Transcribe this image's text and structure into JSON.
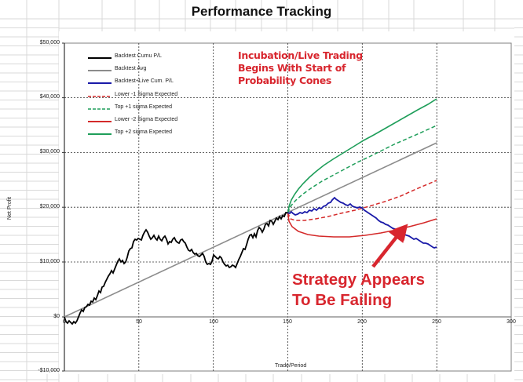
{
  "chart_data": {
    "type": "line",
    "title": "Performance Tracking",
    "xlabel": "Trade/Period",
    "ylabel": "Net Profit",
    "xlim": [
      0,
      300
    ],
    "ylim": [
      -10000,
      50000
    ],
    "x_ticks": [
      "0",
      "50",
      "100",
      "150",
      "200",
      "250",
      "300"
    ],
    "y_ticks": [
      "$50,000",
      "$40,000",
      "$30,000",
      "$20,000",
      "$10,000",
      "$0",
      "-$10,000"
    ],
    "grid": true,
    "legend_position": "upper-left",
    "legend": [
      {
        "label": "Backtest Cumu P/L",
        "color": "#000000",
        "style": "solid"
      },
      {
        "label": "Backtest Avg",
        "color": "#8c8c8c",
        "style": "solid"
      },
      {
        "label": "Backtest+Live Cum. P/L",
        "color": "#1a1aa8",
        "style": "solid"
      },
      {
        "label": "Lower -1 Sigma Expected",
        "color": "#d42a2a",
        "style": "dashed"
      },
      {
        "label": "Top +1 sigma Expected",
        "color": "#1f9e5a",
        "style": "dashed"
      },
      {
        "label": "Lower -2 Sigma Expected",
        "color": "#d42a2a",
        "style": "solid"
      },
      {
        "label": "Top +2 sigma Expected",
        "color": "#1f9e5a",
        "style": "solid"
      }
    ],
    "series": [
      {
        "name": "Backtest Cumu P/L",
        "x": [
          0,
          3,
          6,
          10,
          14,
          18,
          22,
          26,
          30,
          34,
          38,
          42,
          46,
          50,
          54,
          58,
          62,
          66,
          70,
          74,
          78,
          82,
          86,
          90,
          94,
          98,
          102,
          106,
          110,
          114,
          118,
          122,
          126,
          130,
          134,
          138,
          142,
          146,
          150
        ],
        "y": [
          0,
          -1200,
          -900,
          300,
          2800,
          4200,
          5500,
          6800,
          8500,
          9900,
          10800,
          10500,
          12800,
          14000,
          14200,
          15400,
          14600,
          13500,
          13200,
          14000,
          12900,
          12300,
          13000,
          12000,
          10200,
          9800,
          10800,
          10300,
          9200,
          8600,
          9000,
          12000,
          13200,
          15500,
          16000,
          17200,
          17500,
          18200,
          19000
        ]
      },
      {
        "name": "Backtest Avg",
        "x": [
          0,
          250
        ],
        "y": [
          0,
          31800
        ]
      },
      {
        "name": "Backtest+Live Cum. P/L",
        "x": [
          150,
          155,
          160,
          165,
          170,
          175,
          180,
          185,
          190,
          195,
          200,
          205,
          210,
          215,
          220,
          225,
          230,
          235,
          240,
          245,
          250
        ],
        "y": [
          19000,
          18600,
          19200,
          19400,
          19900,
          20500,
          21600,
          20800,
          20400,
          20300,
          20000,
          19400,
          18800,
          18200,
          17700,
          17100,
          16400,
          15800,
          15100,
          14800,
          14500
        ]
      },
      {
        "name": "Lower -1 Sigma Expected",
        "x": [
          150,
          160,
          175,
          200,
          225,
          250
        ],
        "y": [
          19000,
          17100,
          17700,
          19900,
          22300,
          24900
        ]
      },
      {
        "name": "Top +1 sigma Expected",
        "x": [
          150,
          160,
          175,
          200,
          225,
          250
        ],
        "y": [
          19000,
          22600,
          26000,
          30200,
          34600,
          38700
        ]
      },
      {
        "name": "Lower -2 Sigma Expected",
        "x": [
          150,
          155,
          165,
          180,
          200,
          225,
          250
        ],
        "y": [
          19000,
          15700,
          14200,
          13700,
          14100,
          15900,
          18000
        ]
      },
      {
        "name": "Top +2 sigma Expected",
        "x": [
          150,
          155,
          165,
          180,
          200,
          225,
          250
        ],
        "y": [
          19000,
          22500,
          26400,
          30400,
          35100,
          40400,
          45700
        ]
      }
    ],
    "annotations": [
      "Incubation/Live Trading Begins With Start of Probability Cones",
      "Strategy Appears To Be Failing"
    ]
  },
  "chart": {
    "title": "Performance Tracking",
    "xlabel": "Trade/Period",
    "ylabel": "Net Profit",
    "y_ticks": [
      "$50,000",
      "$40,000",
      "$30,000",
      "$20,000",
      "$10,000",
      "$0",
      "-$10,000"
    ],
    "x_ticks": [
      "0",
      "50",
      "100",
      "150",
      "200",
      "250",
      "300"
    ],
    "legend": [
      "Backtest Cumu P/L",
      "Backtest Avg",
      "Backtest+Live Cum. P/L",
      "Lower -1 Sigma Expected",
      "Top +1 sigma Expected",
      "Lower -2 Sigma Expected",
      "Top +2 sigma Expected"
    ],
    "annotation_top": [
      "Incubation/Live Trading",
      "Begins With Start of",
      "Probability Cones"
    ],
    "annotation_bottom": [
      "Strategy Appears",
      "To Be Failing"
    ]
  },
  "colors": {
    "accent_red": "#d8262e",
    "green": "#1f9e5a",
    "blue": "#1a1aa8",
    "gray": "#8c8c8c"
  }
}
